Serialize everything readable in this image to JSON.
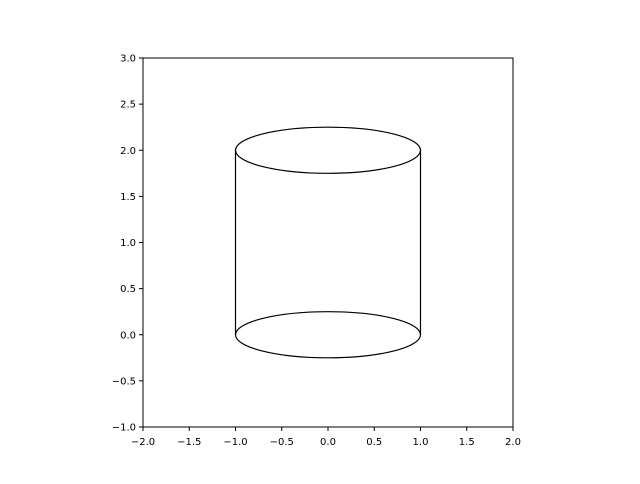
{
  "chart_data": {
    "type": "line",
    "title": "",
    "xlabel": "",
    "ylabel": "",
    "xlim": [
      -2.0,
      2.0
    ],
    "ylim": [
      -1.0,
      3.0
    ],
    "aspect": "equal",
    "grid": false,
    "legend": "none",
    "x_ticks": [
      -2.0,
      -1.5,
      -1.0,
      -0.5,
      0.0,
      0.5,
      1.0,
      1.5,
      2.0
    ],
    "x_tick_labels": [
      "−2.0",
      "−1.5",
      "−1.0",
      "−0.5",
      "0.0",
      "0.5",
      "1.0",
      "1.5",
      "2.0"
    ],
    "y_ticks": [
      -1.0,
      -0.5,
      0.0,
      0.5,
      1.0,
      1.5,
      2.0,
      2.5,
      3.0
    ],
    "y_tick_labels": [
      "−1.0",
      "−0.5",
      "0.0",
      "0.5",
      "1.0",
      "1.5",
      "2.0",
      "2.5",
      "3.0"
    ],
    "shape": {
      "kind": "cylinder",
      "center_x": 0.0,
      "radius_x": 1.0,
      "ellipse_ry": 0.25,
      "bottom_y": 0.0,
      "top_y": 2.0
    },
    "series": [
      {
        "kind": "ellipse",
        "cx": 0.0,
        "cy": 2.0,
        "rx": 1.0,
        "ry": 0.25
      },
      {
        "kind": "ellipse",
        "cx": 0.0,
        "cy": 0.0,
        "rx": 1.0,
        "ry": 0.25
      },
      {
        "kind": "line",
        "x": [
          -1.0,
          -1.0
        ],
        "y": [
          0.0,
          2.0
        ]
      },
      {
        "kind": "line",
        "x": [
          1.0,
          1.0
        ],
        "y": [
          0.0,
          2.0
        ]
      }
    ],
    "line_color": "#000000"
  }
}
